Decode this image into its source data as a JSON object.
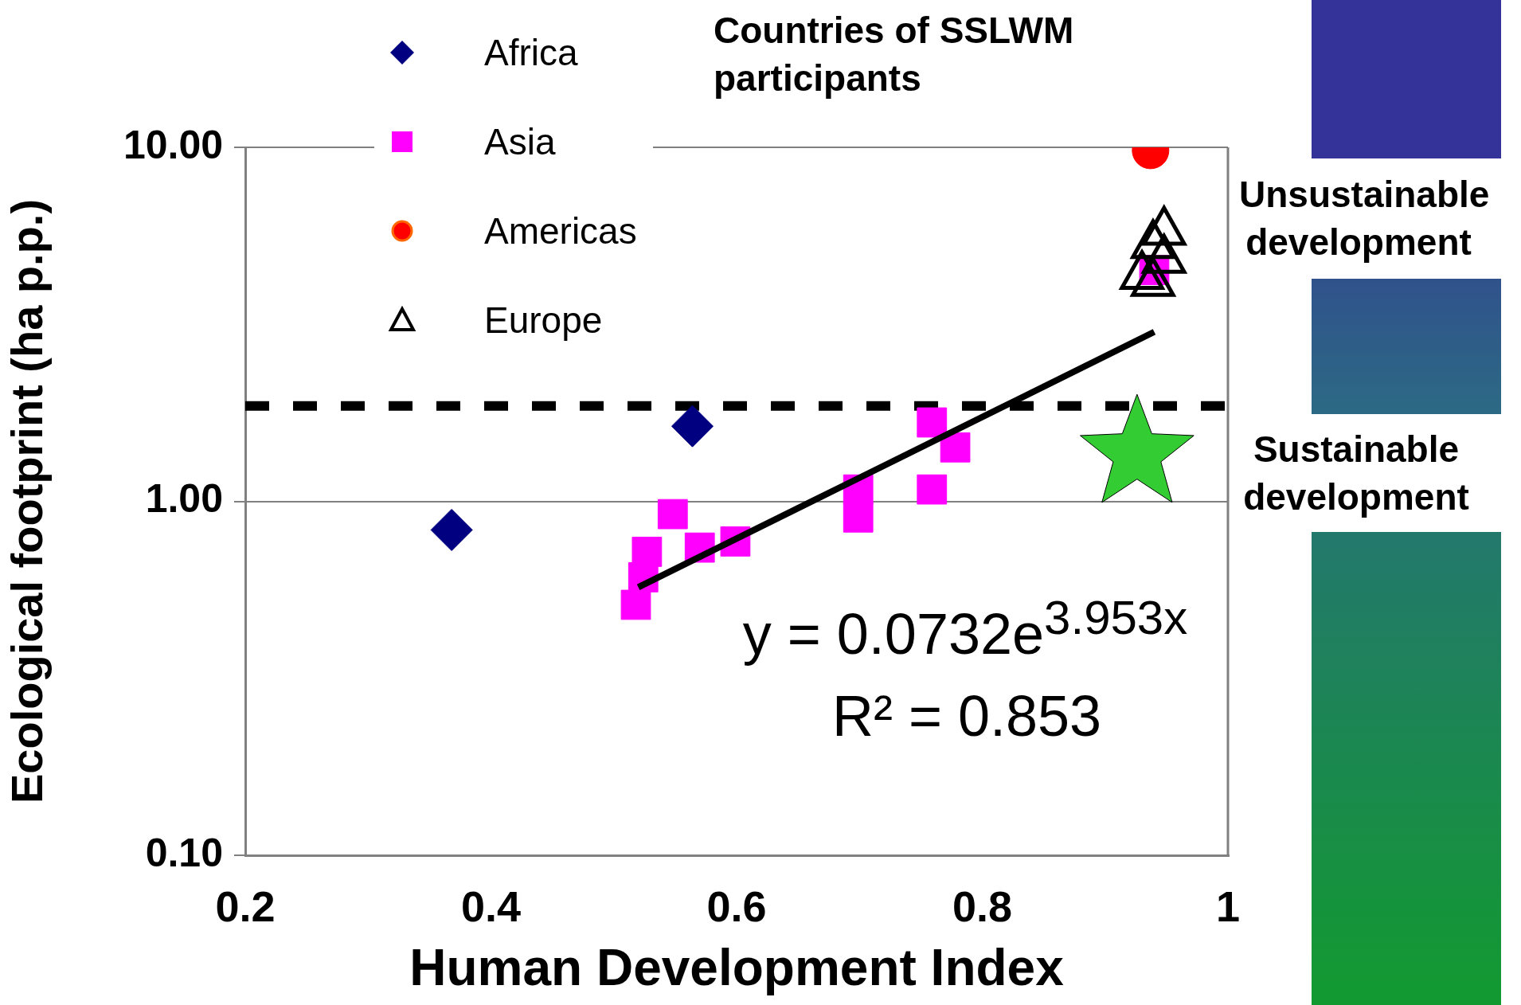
{
  "chart_data": {
    "type": "scatter",
    "title": "Countries of SSLWM participants",
    "xlabel": "Human Development Index",
    "ylabel": "Ecological footprint (ha p.p.)",
    "xlim": [
      0.2,
      1
    ],
    "xticks": [
      0.2,
      0.4,
      0.6,
      0.8,
      1
    ],
    "ylim": [
      0.1,
      10
    ],
    "yticks": [
      {
        "value": 0.1,
        "label": "0.10"
      },
      {
        "value": 1,
        "label": "1.00"
      },
      {
        "value": 10,
        "label": "10.00"
      }
    ],
    "log": "y",
    "grid": "y",
    "legend": "top",
    "series": [
      {
        "name": "Africa",
        "color": "#000080",
        "marker": "diamond",
        "x": [
          0.368,
          0.564
        ],
        "values": [
          0.83,
          1.63
        ]
      },
      {
        "name": "Asia",
        "color": "#ff00ff",
        "marker": "square",
        "x": [
          0.518,
          0.524,
          0.527,
          0.548,
          0.57,
          0.599,
          0.699,
          0.699,
          0.759,
          0.778,
          0.759,
          0.94
        ],
        "values": [
          0.51,
          0.61,
          0.72,
          0.92,
          0.74,
          0.77,
          1.08,
          0.9,
          1.67,
          1.42,
          1.08,
          4.5
        ]
      },
      {
        "name": "Americas",
        "color": "#ff0000",
        "marker": "circle",
        "x": [
          0.937
        ],
        "values": [
          9.8
        ]
      },
      {
        "name": "Europe",
        "color": "#000000",
        "marker": "triangle",
        "x": [
          0.948,
          0.939,
          0.948,
          0.93,
          0.939
        ],
        "values": [
          6.0,
          5.5,
          5.0,
          4.5,
          4.3
        ]
      },
      {
        "type": "line",
        "color": "#000000",
        "marker": "none",
        "x": [
          0.52,
          0.7,
          0.94
        ],
        "values": [
          0.572,
          1.165,
          3.01
        ]
      },
      {
        "color": "#33cc33",
        "marker": "star",
        "x": [
          0.926
        ],
        "values": [
          1.36
        ]
      }
    ],
    "ref_lines": [
      {
        "axis": "y",
        "value": 1.86,
        "color": "#000000",
        "line_style": "dashed"
      }
    ],
    "annotations": [
      "y = 0.0732e$^{3.953x}$",
      "R² = 0.853",
      "Unsustainable development",
      "Sustainable development"
    ]
  }
}
